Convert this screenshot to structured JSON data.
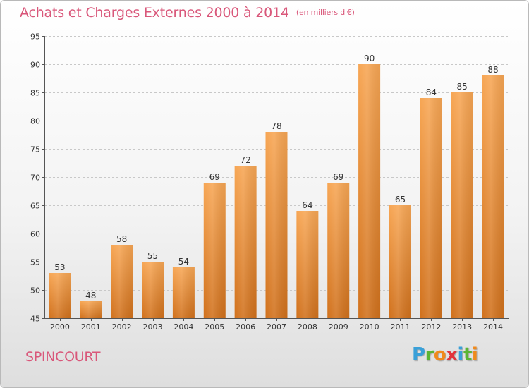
{
  "header": {
    "title": "Achats et Charges Externes 2000 à 2014",
    "unit": "(en milliers d'€)"
  },
  "footer": {
    "place": "SPINCOURT",
    "logo": {
      "letters": [
        "P",
        "r",
        "o",
        "x",
        "i",
        "t",
        "i"
      ],
      "colors": [
        "#3aa0d8",
        "#5bb534",
        "#f08a1c",
        "#e2343c",
        "#3aa0d8",
        "#5bb534",
        "#f08a1c"
      ]
    }
  },
  "colors": {
    "title": "#d9577a",
    "bar_top": "#f7a654",
    "bar_bottom": "#d1711c",
    "grid": "#c8c8c8"
  },
  "chart_data": {
    "type": "bar",
    "title": "Achats et Charges Externes 2000 à 2014",
    "categories": [
      "2000",
      "2001",
      "2002",
      "2003",
      "2004",
      "2005",
      "2006",
      "2007",
      "2008",
      "2009",
      "2010",
      "2011",
      "2012",
      "2013",
      "2014"
    ],
    "values": [
      53,
      48,
      58,
      55,
      54,
      69,
      72,
      78,
      64,
      69,
      90,
      65,
      84,
      85,
      88
    ],
    "ylim": [
      45,
      95
    ],
    "yticks": [
      45,
      50,
      55,
      60,
      65,
      70,
      75,
      80,
      85,
      90,
      95
    ],
    "grid": true,
    "xlabel": "",
    "ylabel": ""
  }
}
